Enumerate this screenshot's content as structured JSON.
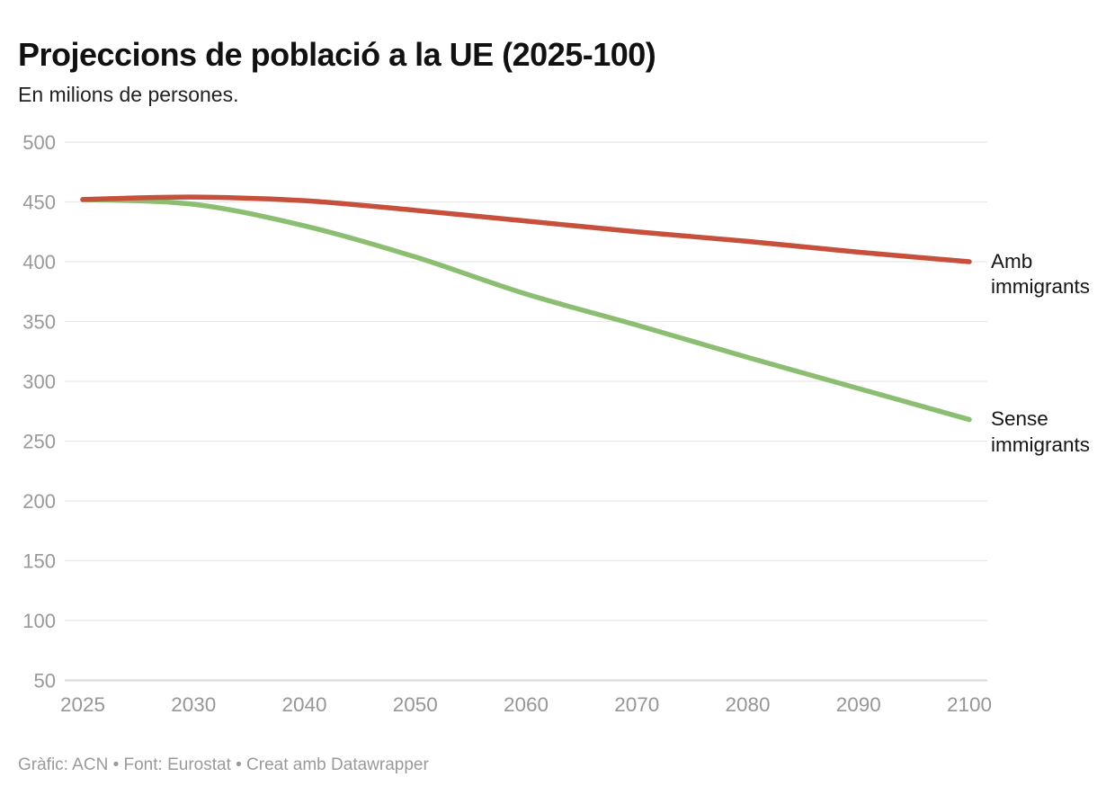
{
  "header": {
    "title": "Projeccions de població a la UE (2025-100)",
    "subtitle": "En milions de persones."
  },
  "chart_data": {
    "type": "line",
    "title": "Projeccions de població a la UE (2025-100)",
    "subtitle": "En milions de persones.",
    "categories": [
      "2025",
      "2030",
      "2040",
      "2050",
      "2060",
      "2070",
      "2080",
      "2090",
      "2100"
    ],
    "series": [
      {
        "name": "Amb immigrants",
        "color": "#c6503c",
        "values": [
          452,
          454,
          451,
          443,
          434,
          425,
          417,
          408,
          400
        ]
      },
      {
        "name": "Sense immigrants",
        "color": "#8cbe72",
        "values": [
          452,
          448,
          430,
          404,
          373,
          347,
          320,
          294,
          268
        ]
      }
    ],
    "xlabel": "",
    "ylabel": "",
    "ylim": [
      50,
      500
    ],
    "yticks": [
      50,
      100,
      150,
      200,
      250,
      300,
      350,
      400,
      450,
      500
    ],
    "grid": true,
    "legend_position": "labels at right end of lines",
    "line_width": 5.5,
    "grid_color": "#e8e8e8",
    "axis_line_color": "#d8d8d8",
    "tick_label_color": "#999999"
  },
  "footer": {
    "text": "Gràfic: ACN • Font: Eurostat • Creat amb Datawrapper"
  }
}
